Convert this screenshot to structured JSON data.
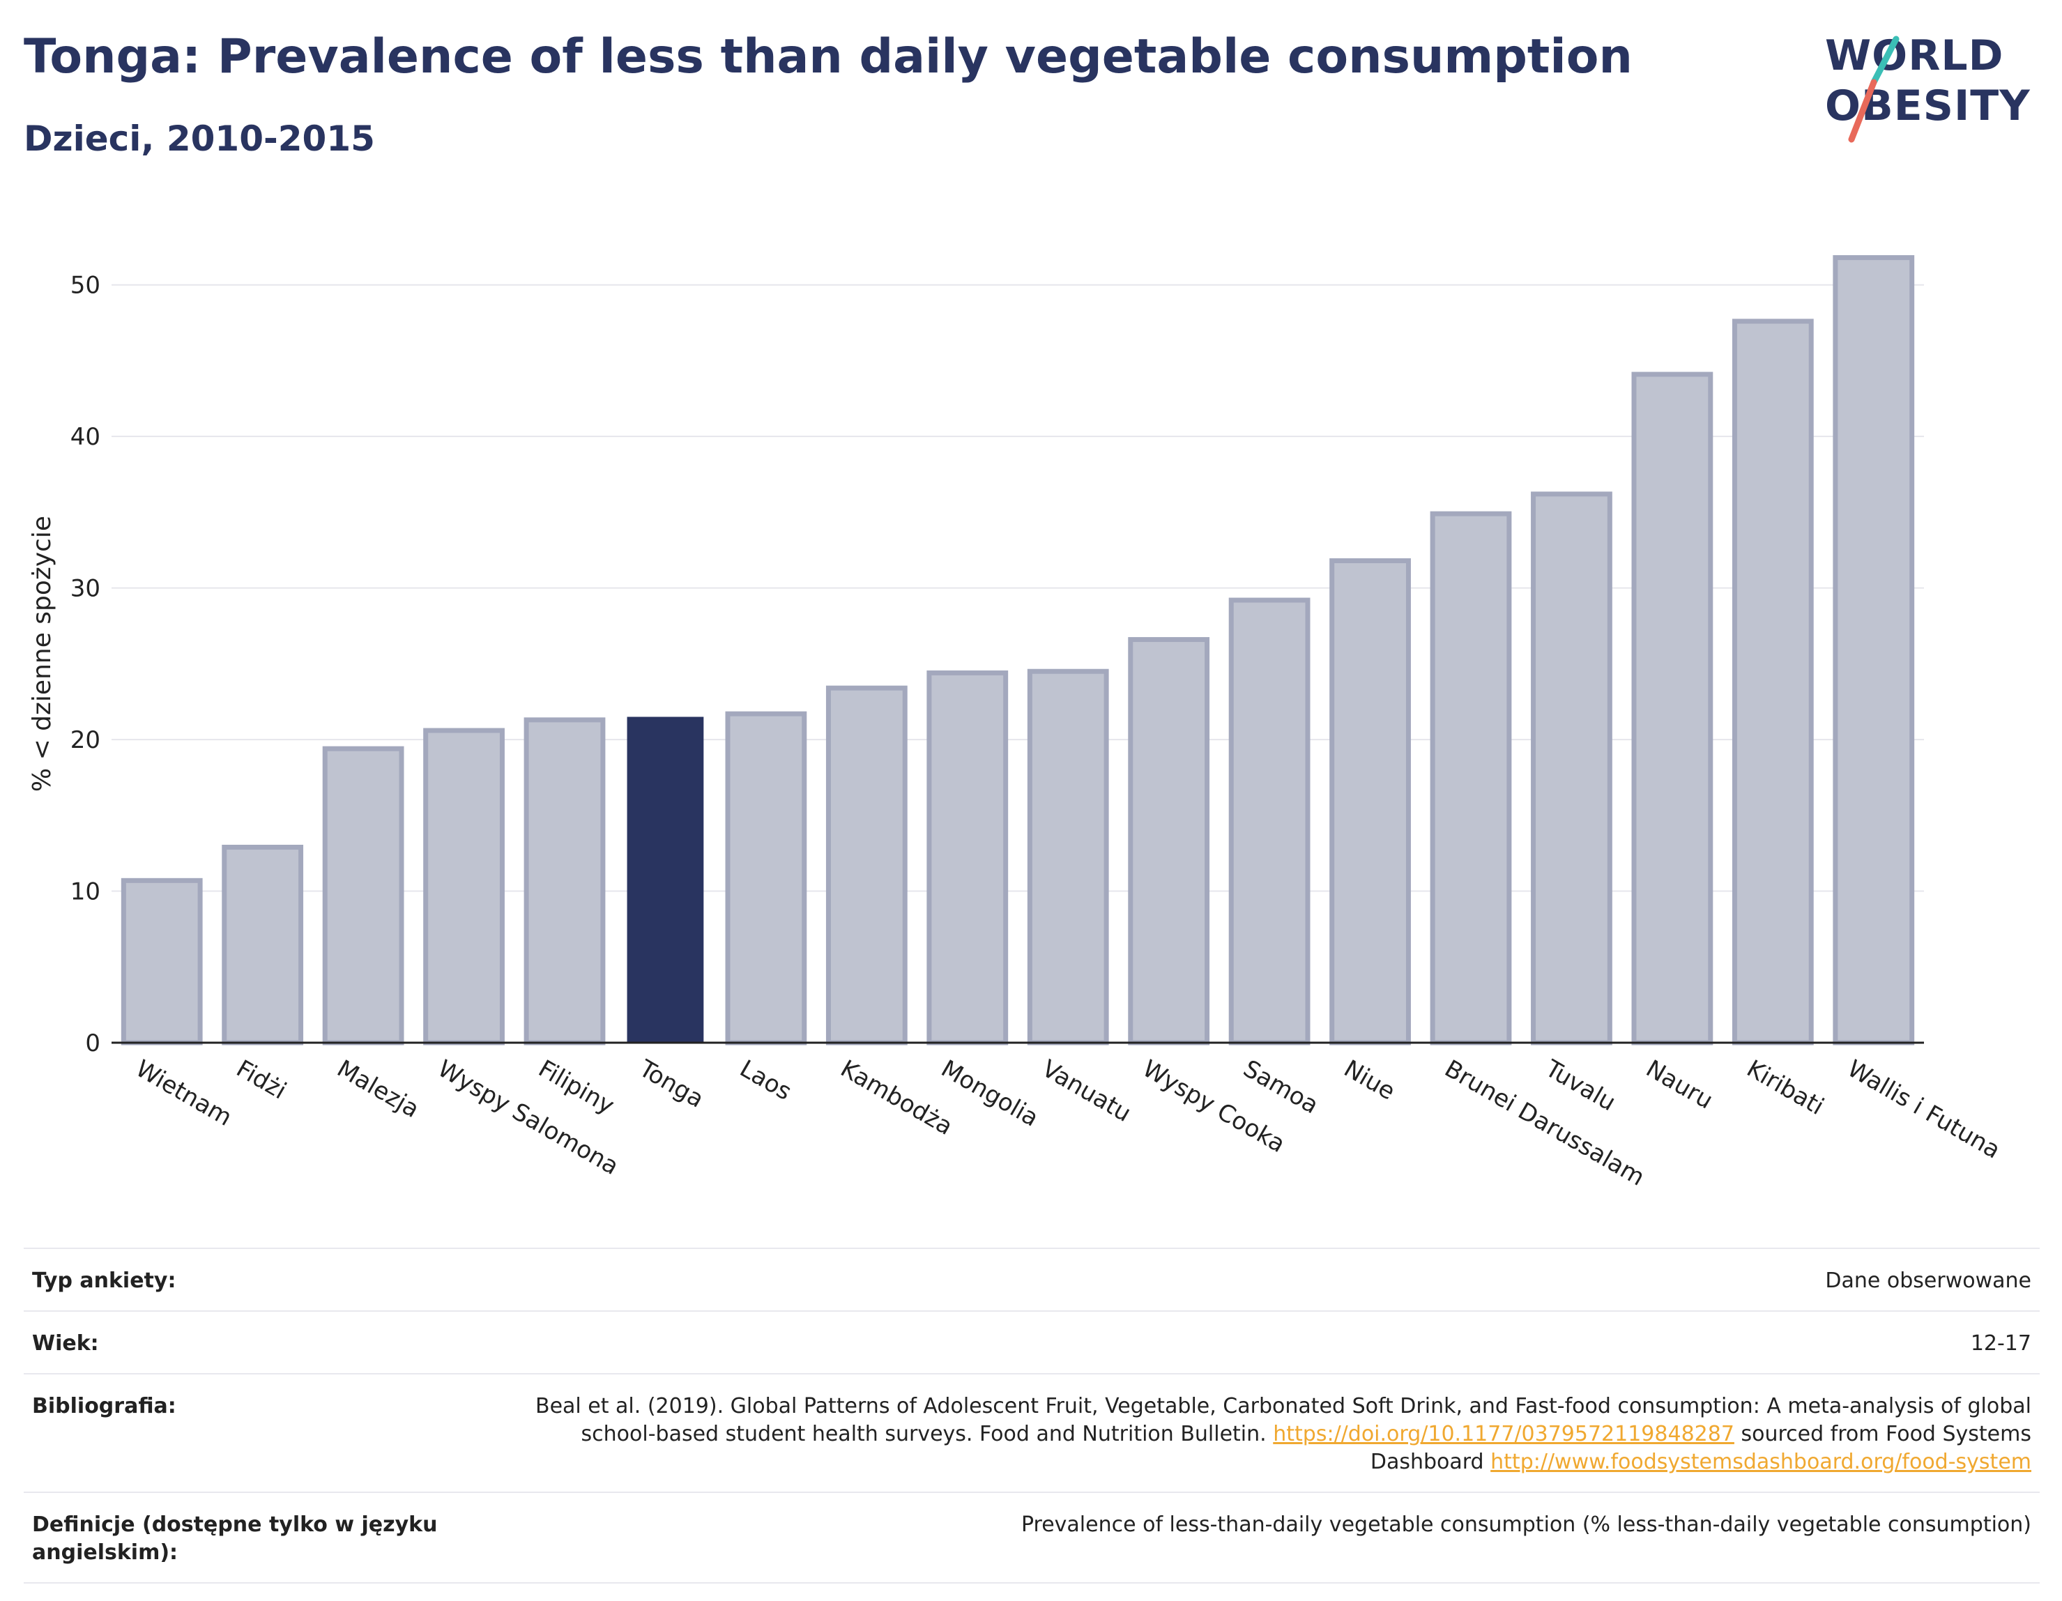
{
  "header": {
    "title": "Tonga: Prevalence of less than daily vegetable consumption",
    "subtitle": "Dzieci, 2010-2015"
  },
  "logo": {
    "line1": "WORLD",
    "line2": "OBESITY",
    "accent_teal": "#3bbfb6",
    "accent_coral": "#e8695a"
  },
  "chart_data": {
    "type": "bar",
    "ylabel": "% < dzienne spożycie",
    "ylim": [
      0,
      55
    ],
    "yticks": [
      0,
      10,
      20,
      30,
      40,
      50
    ],
    "grid": true,
    "highlight": "Tonga",
    "colors": {
      "highlight": "#293460",
      "bar_fill": "#bfc3d0",
      "bar_edge": "#a3a8bd"
    },
    "categories": [
      "Wietnam",
      "Fidżi",
      "Malezja",
      "Wyspy Salomona",
      "Filipiny",
      "Tonga",
      "Laos",
      "Kambodża",
      "Mongolia",
      "Vanuatu",
      "Wyspy Cooka",
      "Samoa",
      "Niue",
      "Brunei Darussalam",
      "Tuvalu",
      "Nauru",
      "Kiribati",
      "Wallis i Futuna"
    ],
    "values": [
      10.7,
      12.9,
      19.4,
      20.6,
      21.3,
      21.5,
      21.7,
      23.4,
      24.4,
      24.5,
      26.6,
      29.2,
      31.8,
      34.9,
      36.2,
      44.1,
      47.6,
      51.8
    ]
  },
  "info": {
    "survey_label": "Typ ankiety:",
    "survey_value": "Dane obserwowane",
    "age_label": "Wiek:",
    "age_value": "12-17",
    "bib_label": "Bibliografia:",
    "bib_text1": "Beal et al. (2019). Global Patterns of Adolescent Fruit, Vegetable, Carbonated Soft Drink, and Fast-food consumption: A meta-analysis of global school-based student health surveys. Food and Nutrition Bulletin.",
    "bib_link1": "https://doi.org/10.1177/0379572119848287",
    "bib_text2": "sourced from Food Systems Dashboard",
    "bib_link2": "http://www.foodsystemsdashboard.org/food-system",
    "def_label": "Definicje (dostępne tylko w języku angielskim):",
    "def_value": "Prevalence of less-than-daily vegetable consumption (% less-than-daily vegetable consumption)"
  }
}
